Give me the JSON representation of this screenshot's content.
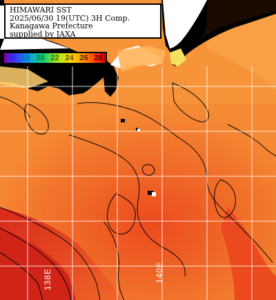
{
  "info": {
    "line1": "HIMAWARI SST",
    "line2": "2025/06/30 19(UTC) 3H Comp.",
    "line3": "Kanagawa Prefecture",
    "line4": "supplied by JAXA"
  },
  "legend": {
    "ticks": [
      "16",
      "18",
      "20",
      "22",
      "24",
      "26",
      "28"
    ],
    "tick_colors": [
      "#2a2aff",
      "#0a8fd0",
      "#14b85a",
      "#b0d400",
      "#e8b400",
      "#b03000",
      "#ffffff"
    ]
  },
  "longitude_labels": {
    "left": "138E",
    "right": "140E"
  },
  "colors": {
    "land": "#000000",
    "sea_cool": "#ff9a3c",
    "sea_warm": "#e8401a",
    "grid": "#ffffff"
  }
}
